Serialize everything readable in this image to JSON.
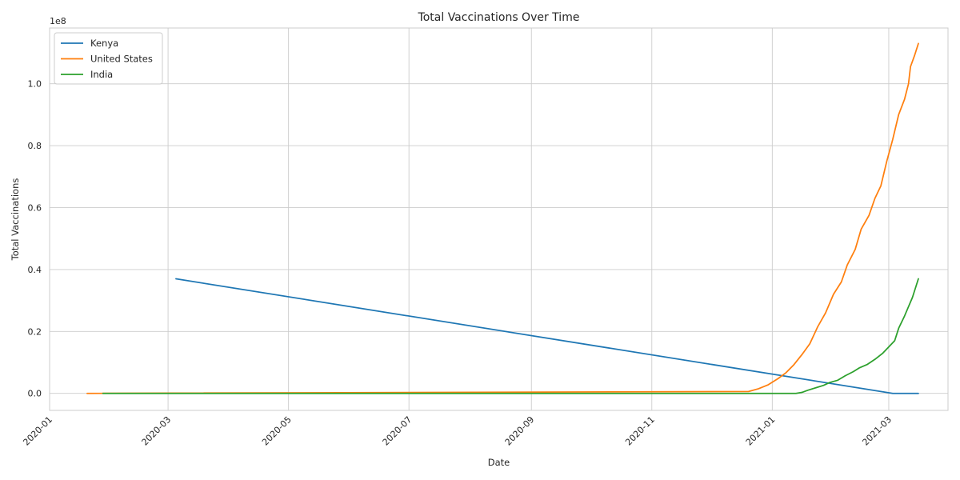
{
  "chart_data": {
    "type": "line",
    "title": "Total Vaccinations Over Time",
    "xlabel": "Date",
    "ylabel": "Total Vaccinations",
    "y_offset_text": "1e8",
    "x_scale": "date",
    "xlim": [
      "2020-01-01",
      "2021-03-31"
    ],
    "ylim": [
      -5500000,
      118000000
    ],
    "x_ticks": [
      "2020-01",
      "2020-03",
      "2020-05",
      "2020-07",
      "2020-09",
      "2020-11",
      "2021-01",
      "2021-03"
    ],
    "x_tick_dates": [
      "2020-01-01",
      "2020-03-01",
      "2020-05-01",
      "2020-07-01",
      "2020-09-01",
      "2020-11-01",
      "2021-01-01",
      "2021-03-01"
    ],
    "y_ticks": [
      0,
      20000000,
      40000000,
      60000000,
      80000000,
      100000000
    ],
    "y_tick_labels": [
      "0.0",
      "0.2",
      "0.4",
      "0.6",
      "0.8",
      "1.0"
    ],
    "grid": true,
    "legend_position": "top-left",
    "series": [
      {
        "name": "Kenya",
        "color": "#1f77b4",
        "points": [
          [
            "2020-03-05",
            37000000
          ],
          [
            "2021-03-03",
            0
          ],
          [
            "2021-03-16",
            0
          ]
        ]
      },
      {
        "name": "United States",
        "color": "#ff7f0e",
        "points": [
          [
            "2020-01-20",
            0
          ],
          [
            "2020-12-20",
            600000
          ],
          [
            "2020-12-25",
            1500000
          ],
          [
            "2020-12-30",
            2800000
          ],
          [
            "2021-01-04",
            4800000
          ],
          [
            "2021-01-08",
            6700000
          ],
          [
            "2021-01-12",
            9300000
          ],
          [
            "2021-01-16",
            12500000
          ],
          [
            "2021-01-20",
            16000000
          ],
          [
            "2021-01-24",
            21500000
          ],
          [
            "2021-01-28",
            26000000
          ],
          [
            "2021-02-01",
            32000000
          ],
          [
            "2021-02-05",
            36000000
          ],
          [
            "2021-02-08",
            41500000
          ],
          [
            "2021-02-12",
            46500000
          ],
          [
            "2021-02-15",
            53000000
          ],
          [
            "2021-02-19",
            57500000
          ],
          [
            "2021-02-22",
            63000000
          ],
          [
            "2021-02-25",
            67000000
          ],
          [
            "2021-02-28",
            75000000
          ],
          [
            "2021-03-03",
            82000000
          ],
          [
            "2021-03-06",
            90000000
          ],
          [
            "2021-03-09",
            95000000
          ],
          [
            "2021-03-11",
            100000000
          ],
          [
            "2021-03-12",
            105500000
          ],
          [
            "2021-03-14",
            109000000
          ],
          [
            "2021-03-16",
            113000000
          ]
        ]
      },
      {
        "name": "India",
        "color": "#2ca02c",
        "points": [
          [
            "2020-01-28",
            0
          ],
          [
            "2021-01-13",
            0
          ],
          [
            "2021-01-16",
            300000
          ],
          [
            "2021-01-19",
            1000000
          ],
          [
            "2021-01-23",
            1800000
          ],
          [
            "2021-01-27",
            2600000
          ],
          [
            "2021-01-30",
            3500000
          ],
          [
            "2021-02-03",
            4200000
          ],
          [
            "2021-02-07",
            5700000
          ],
          [
            "2021-02-11",
            7000000
          ],
          [
            "2021-02-14",
            8200000
          ],
          [
            "2021-02-18",
            9300000
          ],
          [
            "2021-02-22",
            11000000
          ],
          [
            "2021-02-26",
            13000000
          ],
          [
            "2021-03-01",
            15000000
          ],
          [
            "2021-03-04",
            17000000
          ],
          [
            "2021-03-06",
            21000000
          ],
          [
            "2021-03-09",
            25000000
          ],
          [
            "2021-03-11",
            28000000
          ],
          [
            "2021-03-13",
            31000000
          ],
          [
            "2021-03-15",
            35000000
          ],
          [
            "2021-03-16",
            37000000
          ]
        ]
      }
    ]
  }
}
